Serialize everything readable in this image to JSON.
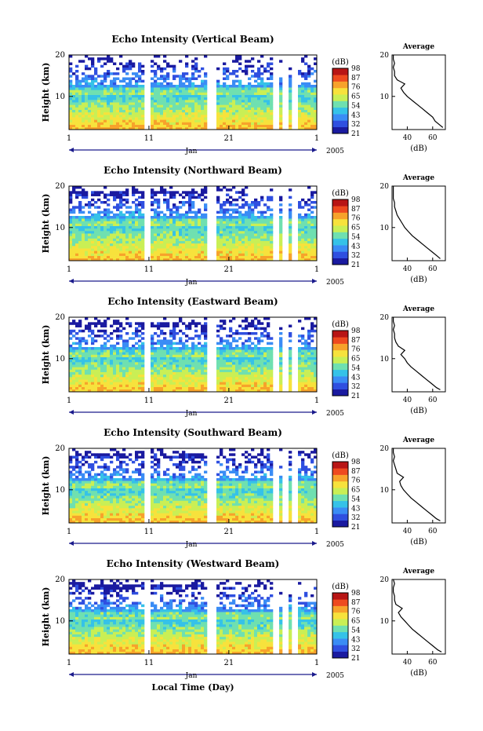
{
  "colors": {
    "colormap": [
      "#1a1aa0",
      "#2f4fe0",
      "#3a8cf5",
      "#35c2e8",
      "#6fe0b0",
      "#c9ef55",
      "#f7e23c",
      "#f7a22b",
      "#ee4a1f",
      "#b81515"
    ],
    "axis": "#000000",
    "time_axis": "#1a1a8c",
    "background": "#ffffff"
  },
  "common": {
    "y_label": "Height (km)",
    "y_ticks": [
      "20",
      "10"
    ],
    "x_ticks": [
      "1",
      "11",
      "21",
      "1"
    ],
    "month_label": "Jan",
    "year_label": "2005",
    "x_axis_title": "Local Time (Day)",
    "colorbar_unit": "(dB)",
    "colorbar_ticks": [
      "98",
      "87",
      "76",
      "65",
      "54",
      "43",
      "32",
      "21"
    ],
    "average_title": "Average",
    "average_x_ticks": [
      "40",
      "60"
    ],
    "average_y_ticks": [
      "20",
      "10"
    ],
    "average_x_label": "(dB)"
  },
  "chart_data": [
    {
      "type": "heatmap",
      "title": "Echo Intensity (Vertical Beam)",
      "xlabel": "",
      "ylabel": "Height (km)",
      "xlim": [
        1,
        32
      ],
      "ylim": [
        2,
        20
      ],
      "colorbar": {
        "label": "(dB)",
        "range": [
          21,
          98
        ],
        "ticks": [
          98,
          87,
          76,
          65,
          54,
          43,
          32,
          21
        ]
      },
      "data_gaps_days": [
        [
          10.5,
          10.9
        ],
        [
          18.6,
          19.1
        ],
        [
          26.8,
          27.0
        ],
        [
          27.9,
          28.1
        ],
        [
          29.2,
          29.4
        ]
      ],
      "average_profile": {
        "xlabel": "(dB)",
        "xlim": [
          28,
          70
        ],
        "ylim": [
          2,
          20
        ],
        "height_km": [
          2.5,
          3,
          4,
          5,
          6,
          7,
          8,
          9,
          10,
          11,
          12,
          13,
          14,
          15,
          16,
          17,
          18,
          19,
          20
        ],
        "db": [
          68,
          66,
          62,
          60,
          56,
          52,
          48,
          44,
          40,
          37,
          35,
          38,
          32,
          30,
          30,
          29,
          30,
          29,
          29
        ]
      }
    },
    {
      "type": "heatmap",
      "title": "Echo Intensity (Northward Beam)",
      "xlabel": "",
      "ylabel": "Height (km)",
      "xlim": [
        1,
        32
      ],
      "ylim": [
        2,
        20
      ],
      "colorbar": {
        "label": "(dB)",
        "range": [
          21,
          98
        ],
        "ticks": [
          98,
          87,
          76,
          65,
          54,
          43,
          32,
          21
        ]
      },
      "data_gaps_days": [
        [
          10.5,
          10.9
        ],
        [
          18.6,
          19.1
        ],
        [
          26.8,
          27.0
        ],
        [
          27.9,
          28.1
        ],
        [
          29.2,
          29.4
        ]
      ],
      "average_profile": {
        "xlabel": "(dB)",
        "xlim": [
          28,
          70
        ],
        "ylim": [
          2,
          20
        ],
        "height_km": [
          2.5,
          3,
          4,
          5,
          6,
          7,
          8,
          9,
          10,
          11,
          12,
          13,
          14,
          15,
          16,
          17,
          18,
          19,
          20
        ],
        "db": [
          66,
          64,
          60,
          56,
          52,
          48,
          44,
          41,
          38,
          36,
          34,
          32,
          31,
          30,
          30,
          29,
          29,
          29,
          29
        ]
      }
    },
    {
      "type": "heatmap",
      "title": "Echo Intensity (Eastward Beam)",
      "xlabel": "",
      "ylabel": "Height (km)",
      "xlim": [
        1,
        32
      ],
      "ylim": [
        2,
        20
      ],
      "colorbar": {
        "label": "(dB)",
        "range": [
          21,
          98
        ],
        "ticks": [
          98,
          87,
          76,
          65,
          54,
          43,
          32,
          21
        ]
      },
      "data_gaps_days": [
        [
          10.5,
          10.9
        ],
        [
          18.6,
          19.1
        ],
        [
          26.8,
          27.0
        ],
        [
          27.9,
          28.1
        ],
        [
          29.2,
          29.4
        ]
      ],
      "average_profile": {
        "xlabel": "(dB)",
        "xlim": [
          28,
          70
        ],
        "ylim": [
          2,
          20
        ],
        "height_km": [
          2.5,
          3,
          4,
          5,
          6,
          7,
          8,
          9,
          10,
          11,
          12,
          13,
          14,
          15,
          16,
          17,
          18,
          19,
          20
        ],
        "db": [
          66,
          63,
          59,
          55,
          51,
          47,
          43,
          40,
          38,
          35,
          38,
          33,
          31,
          30,
          30,
          29,
          30,
          29,
          29
        ]
      }
    },
    {
      "type": "heatmap",
      "title": "Echo Intensity (Southward Beam)",
      "xlabel": "",
      "ylabel": "Height (km)",
      "xlim": [
        1,
        32
      ],
      "ylim": [
        2,
        20
      ],
      "colorbar": {
        "label": "(dB)",
        "range": [
          21,
          98
        ],
        "ticks": [
          98,
          87,
          76,
          65,
          54,
          43,
          32,
          21
        ]
      },
      "data_gaps_days": [
        [
          10.5,
          10.9
        ],
        [
          18.6,
          19.1
        ],
        [
          26.8,
          27.0
        ],
        [
          27.9,
          28.1
        ],
        [
          29.2,
          29.4
        ]
      ],
      "average_profile": {
        "xlabel": "(dB)",
        "xlim": [
          28,
          70
        ],
        "ylim": [
          2,
          20
        ],
        "height_km": [
          2.5,
          3,
          4,
          5,
          6,
          7,
          8,
          9,
          10,
          11,
          12,
          13,
          14,
          15,
          16,
          17,
          18,
          19,
          20
        ],
        "db": [
          66,
          63,
          59,
          55,
          51,
          47,
          43,
          40,
          37,
          35,
          34,
          37,
          32,
          31,
          30,
          29,
          30,
          29,
          29
        ]
      }
    },
    {
      "type": "heatmap",
      "title": "Echo Intensity (Westward Beam)",
      "xlabel": "Local Time (Day)",
      "ylabel": "Height (km)",
      "xlim": [
        1,
        32
      ],
      "ylim": [
        2,
        20
      ],
      "colorbar": {
        "label": "(dB)",
        "range": [
          21,
          98
        ],
        "ticks": [
          98,
          87,
          76,
          65,
          54,
          43,
          32,
          21
        ]
      },
      "data_gaps_days": [
        [
          10.5,
          10.9
        ],
        [
          18.6,
          19.1
        ],
        [
          26.8,
          27.0
        ],
        [
          27.9,
          28.1
        ],
        [
          29.2,
          29.4
        ]
      ],
      "average_profile": {
        "xlabel": "(dB)",
        "xlim": [
          28,
          70
        ],
        "ylim": [
          2,
          20
        ],
        "height_km": [
          2.5,
          3,
          4,
          5,
          6,
          7,
          8,
          9,
          10,
          11,
          12,
          13,
          14,
          15,
          16,
          17,
          18,
          19,
          20
        ],
        "db": [
          67,
          64,
          60,
          56,
          52,
          48,
          44,
          41,
          38,
          35,
          33,
          36,
          31,
          30,
          30,
          29,
          29,
          30,
          29
        ]
      }
    }
  ]
}
